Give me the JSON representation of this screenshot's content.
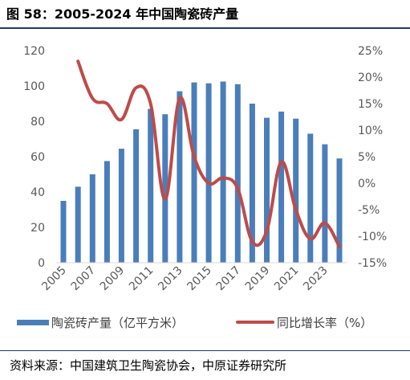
{
  "figure": {
    "title": "图 58：2005-2024 年中国陶瓷砖产量",
    "source": "资料来源：中国建筑卫生陶瓷协会，中原证券研究所"
  },
  "colors": {
    "bar": "#4a7ebb",
    "line": "#be4b48",
    "axis_text": "#595959",
    "rule": "#1f3864"
  },
  "chart_data": {
    "type": "bar",
    "categories": [
      "2005",
      "2006",
      "2007",
      "2008",
      "2009",
      "2010",
      "2011",
      "2012",
      "2013",
      "2014",
      "2015",
      "2016",
      "2017",
      "2018",
      "2019",
      "2020",
      "2021",
      "2022",
      "2023",
      "2024"
    ],
    "x_tick_labels": [
      "2005",
      "2007",
      "2009",
      "2011",
      "2013",
      "2015",
      "2017",
      "2019",
      "2021",
      "2023"
    ],
    "series": [
      {
        "name": "陶瓷砖产量（亿平方米）",
        "type": "bar",
        "axis": "left",
        "values": [
          35,
          43,
          50,
          57.5,
          64.5,
          75.5,
          87,
          84,
          97,
          102,
          101.5,
          102.5,
          101,
          90,
          82,
          85.5,
          81.5,
          73,
          67,
          59
        ]
      },
      {
        "name": "同比增长率（%）",
        "type": "line",
        "axis": "right",
        "values": [
          null,
          23,
          16,
          15,
          12,
          18,
          15,
          -3,
          16,
          5,
          0,
          1,
          -1,
          -11,
          -9,
          4,
          -5,
          -10.5,
          -7.5,
          -12
        ]
      }
    ],
    "y_left": {
      "ylim": [
        0,
        120
      ],
      "ticks": [
        "0",
        "20",
        "40",
        "60",
        "80",
        "100",
        "120"
      ]
    },
    "y_right": {
      "ylim": [
        -15,
        25
      ],
      "ticks": [
        "-15%",
        "-10%",
        "-5%",
        "0%",
        "5%",
        "10%",
        "15%",
        "20%",
        "25%"
      ]
    },
    "legend_position": "bottom",
    "grid": false
  }
}
